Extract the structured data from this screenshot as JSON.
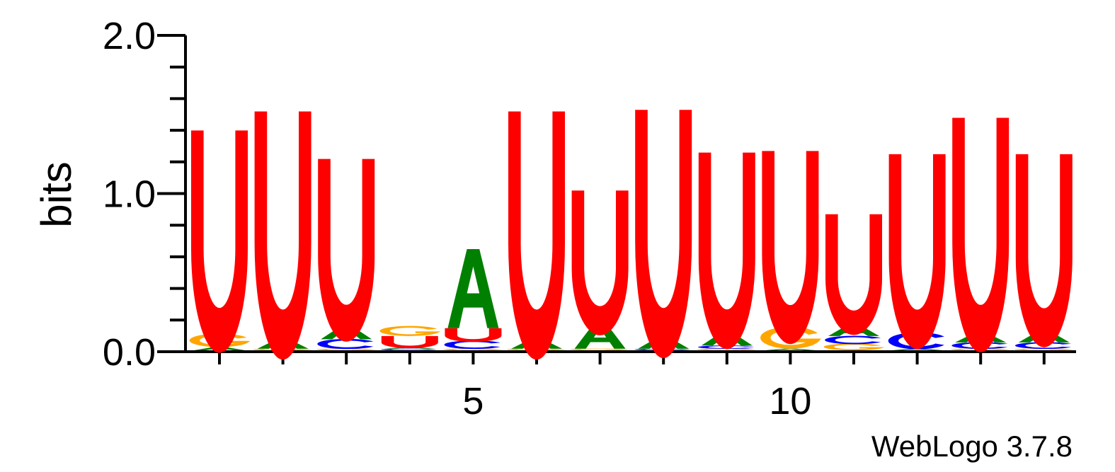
{
  "chart_data": {
    "type": "sequence-logo",
    "ylabel": "bits",
    "ylim": [
      0,
      2.0
    ],
    "y_ticks": [
      "0.0",
      "1.0",
      "2.0"
    ],
    "x_ticks": [
      "5",
      "10"
    ],
    "x_tick_positions": [
      5,
      10
    ],
    "footer": "WebLogo 3.7.8",
    "colors": {
      "A": "#008000",
      "C": "#0000ff",
      "G": "#ffa500",
      "U": "#ff0000"
    },
    "positions": [
      {
        "pos": 1,
        "letters": [
          [
            "A",
            0.02
          ],
          [
            "G",
            0.08
          ],
          [
            "U",
            1.29
          ]
        ]
      },
      {
        "pos": 2,
        "letters": [
          [
            "G",
            0.01
          ],
          [
            "A",
            0.06
          ],
          [
            "U",
            1.44
          ]
        ]
      },
      {
        "pos": 3,
        "letters": [
          [
            "G",
            0.01
          ],
          [
            "C",
            0.06
          ],
          [
            "A",
            0.08
          ],
          [
            "U",
            1.06
          ]
        ]
      },
      {
        "pos": 4,
        "letters": [
          [
            "C",
            0.01
          ],
          [
            "A",
            0.01
          ],
          [
            "U",
            0.07
          ],
          [
            "G",
            0.06
          ]
        ]
      },
      {
        "pos": 5,
        "letters": [
          [
            "G",
            0.01
          ],
          [
            "C",
            0.05
          ],
          [
            "U",
            0.08
          ],
          [
            "A",
            0.5
          ]
        ]
      },
      {
        "pos": 6,
        "letters": [
          [
            "G",
            0.01
          ],
          [
            "A",
            0.06
          ],
          [
            "U",
            1.44
          ]
        ]
      },
      {
        "pos": 7,
        "letters": [
          [
            "G",
            0.01
          ],
          [
            "A",
            0.16
          ],
          [
            "U",
            0.84
          ]
        ]
      },
      {
        "pos": 8,
        "letters": [
          [
            "C",
            0.01
          ],
          [
            "A",
            0.07
          ],
          [
            "U",
            1.44
          ]
        ]
      },
      {
        "pos": 9,
        "letters": [
          [
            "G",
            0.01
          ],
          [
            "C",
            0.02
          ],
          [
            "A",
            0.08
          ],
          [
            "U",
            1.14
          ]
        ]
      },
      {
        "pos": 10,
        "letters": [
          [
            "A",
            0.01
          ],
          [
            "G",
            0.13
          ],
          [
            "U",
            1.12
          ]
        ]
      },
      {
        "pos": 11,
        "letters": [
          [
            "G",
            0.04
          ],
          [
            "C",
            0.05
          ],
          [
            "A",
            0.07
          ],
          [
            "U",
            0.7
          ]
        ]
      },
      {
        "pos": 12,
        "letters": [
          [
            "A",
            0.01
          ],
          [
            "C",
            0.1
          ],
          [
            "U",
            1.13
          ]
        ]
      },
      {
        "pos": 13,
        "letters": [
          [
            "G",
            0.01
          ],
          [
            "C",
            0.04
          ],
          [
            "A",
            0.06
          ],
          [
            "U",
            1.36
          ]
        ]
      },
      {
        "pos": 14,
        "letters": [
          [
            "G",
            0.01
          ],
          [
            "C",
            0.04
          ],
          [
            "A",
            0.07
          ],
          [
            "U",
            1.12
          ]
        ]
      }
    ]
  }
}
